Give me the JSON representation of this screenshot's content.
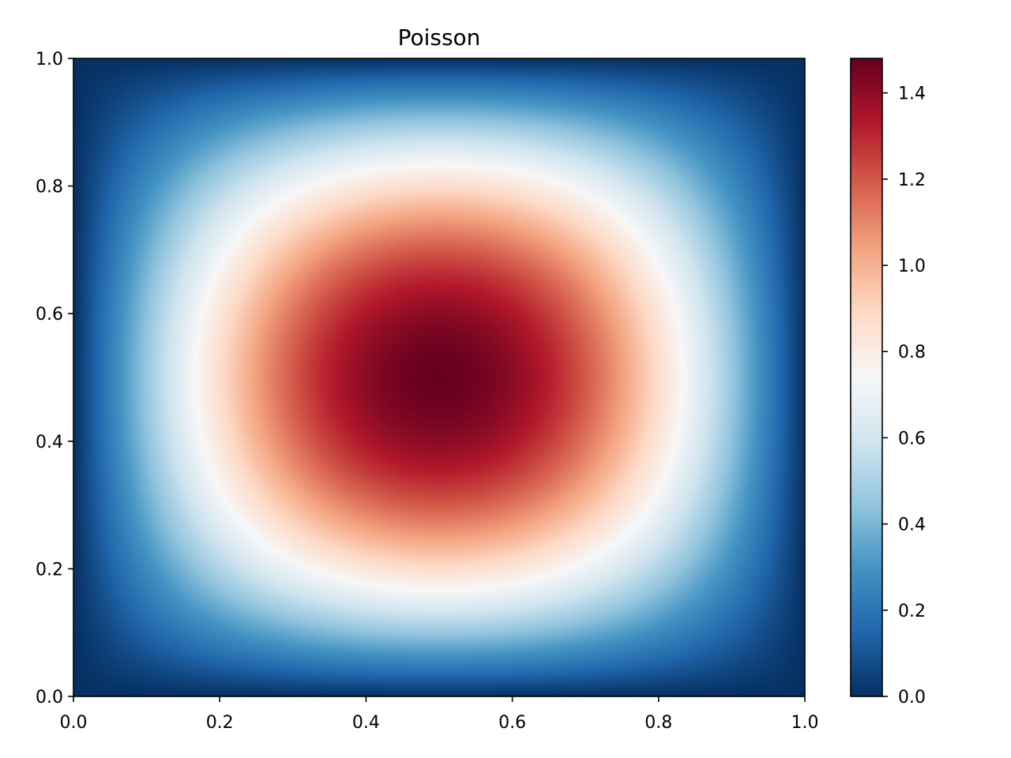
{
  "chart_data": {
    "type": "heatmap",
    "title": "Poisson",
    "xlabel": "",
    "ylabel": "",
    "xlim": [
      0.0,
      1.0
    ],
    "ylim": [
      0.0,
      1.0
    ],
    "x_ticks": [
      "0.0",
      "0.2",
      "0.4",
      "0.6",
      "0.8",
      "1.0"
    ],
    "y_ticks": [
      "0.0",
      "0.2",
      "0.4",
      "0.6",
      "0.8",
      "1.0"
    ],
    "function": "u(x,y) = 1.48 * sin(pi*x) * sin(pi*y)",
    "peak": {
      "x": 0.5,
      "y": 0.5,
      "value": 1.48
    },
    "colorbar": {
      "min": 0.0,
      "max": 1.48,
      "ticks": [
        "0.0",
        "0.2",
        "0.4",
        "0.6",
        "0.8",
        "1.0",
        "1.2",
        "1.4"
      ]
    },
    "colormap": "RdBu_r",
    "grid": false,
    "colors": {
      "low": "#053061",
      "mid": "#f7f7f7",
      "high": "#67001f"
    }
  }
}
